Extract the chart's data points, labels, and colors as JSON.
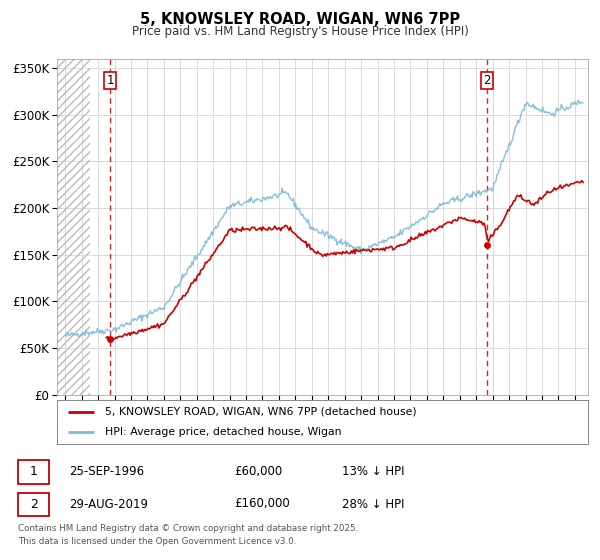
{
  "title": "5, KNOWSLEY ROAD, WIGAN, WN6 7PP",
  "subtitle": "Price paid vs. HM Land Registry's House Price Index (HPI)",
  "background_color": "#ffffff",
  "plot_bg_color": "#ffffff",
  "hpi_color": "#7ab8d9",
  "price_color": "#cc0000",
  "vline_color": "#cc0000",
  "sale1_year": 1996.73,
  "sale1_price": 60000,
  "sale2_year": 2019.66,
  "sale2_price": 160000,
  "xmin": 1993.5,
  "xmax": 2025.8,
  "ymin": 0,
  "ymax": 360000,
  "yticks": [
    0,
    50000,
    100000,
    150000,
    200000,
    250000,
    300000,
    350000
  ],
  "ytick_labels": [
    "£0",
    "£50K",
    "£100K",
    "£150K",
    "£200K",
    "£250K",
    "£300K",
    "£350K"
  ],
  "legend_line1": "5, KNOWSLEY ROAD, WIGAN, WN6 7PP (detached house)",
  "legend_line2": "HPI: Average price, detached house, Wigan",
  "footer": "Contains HM Land Registry data © Crown copyright and database right 2025.\nThis data is licensed under the Open Government Licence v3.0.",
  "hatch_end": 1995.5,
  "hatch_start": 1993.5
}
